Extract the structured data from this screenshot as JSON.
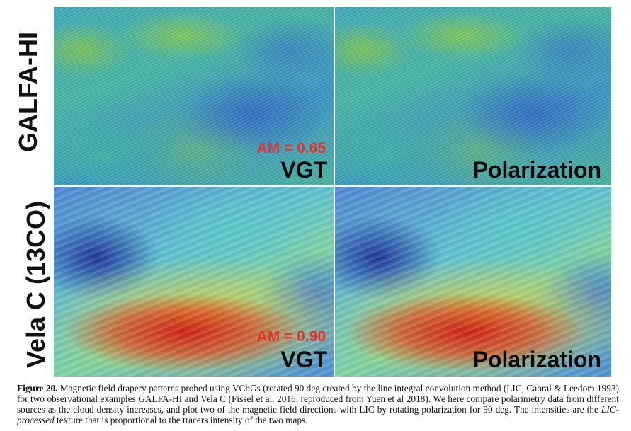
{
  "figure": {
    "row_labels": {
      "top": "GALFA-HI",
      "bottom": "Vela C (13CO)"
    },
    "panels": {
      "galfa_vgt": {
        "am": "AM = 0.65",
        "method": "VGT"
      },
      "galfa_pol": {
        "method": "Polarization"
      },
      "vela_vgt": {
        "am": "AM = 0.90",
        "method": "VGT"
      },
      "vela_pol": {
        "method": "Polarization"
      }
    },
    "colors": {
      "am_text": "#e8312b",
      "method_text": "#0a0a0a"
    }
  },
  "caption": {
    "label": "Figure 20.",
    "part1": " Magnetic field drapery patterns probed using VChGs (rotated 90 deg created by the line integral convolution method (LIC, Cabral & Leedom 1993) for two observational examples GALFA-HI and Vela C (Fissel et al. 2016, reproduced from Yuen et al 2018). We here compare polarimetry data from different sources as the cloud density increases, and plot two of the magnetic field directions with LIC by rotating polarization for 90 deg. The intensities are the ",
    "italic": "LIC-processed",
    "part2": " texture that is proportional to the tracers intensity of the two maps."
  }
}
